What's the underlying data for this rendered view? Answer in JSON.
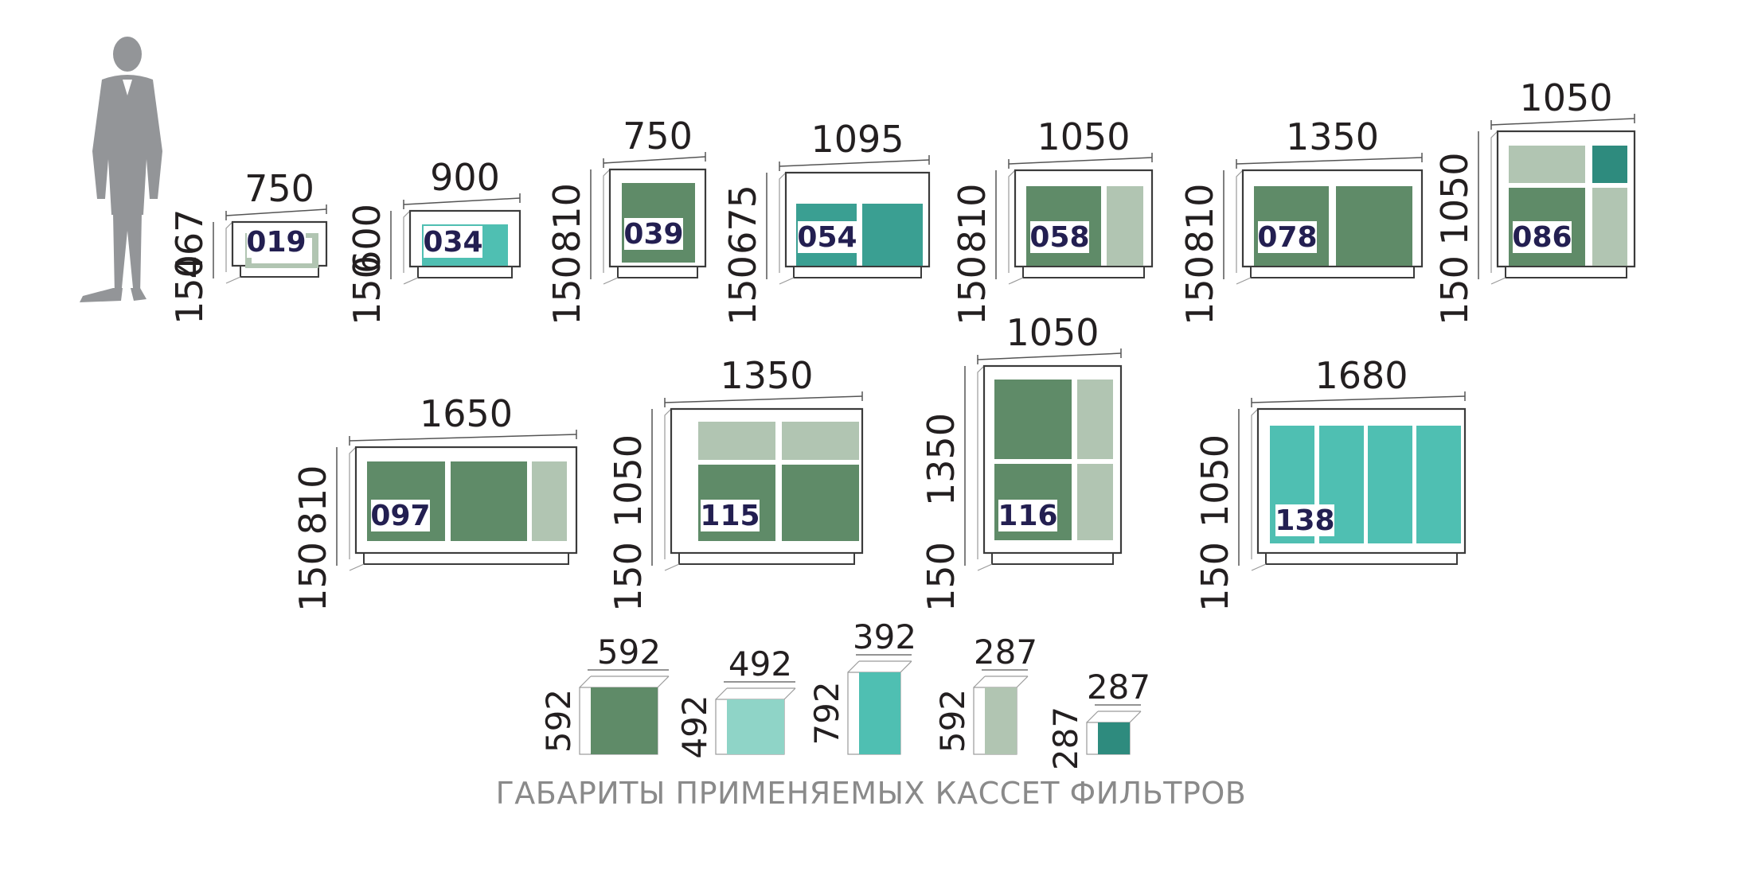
{
  "title": "ГАБАРИТЫ ПРИМЕНЯЕМЫХ КАССЕТ ФИЛЬТРОВ",
  "colors": {
    "dark_green": "#5f8b68",
    "light_sage": "#b1c5b2",
    "teal": "#4fbfb2",
    "mid_teal": "#3a9f92",
    "deep_teal": "#2e8b7e",
    "pale_teal": "#8fd4c7",
    "frame": "#3b3b3b",
    "human": "#939598"
  },
  "units": [
    {
      "code": "019",
      "width": "750",
      "height": "467",
      "base": "150"
    },
    {
      "code": "034",
      "width": "900",
      "height": "600",
      "base": "150"
    },
    {
      "code": "039",
      "width": "750",
      "height": "810",
      "base": "150"
    },
    {
      "code": "054",
      "width": "1095",
      "height": "675",
      "base": "150"
    },
    {
      "code": "058",
      "width": "1050",
      "height": "810",
      "base": "150"
    },
    {
      "code": "078",
      "width": "1350",
      "height": "810",
      "base": "150"
    },
    {
      "code": "086",
      "width": "1050",
      "height": "1050",
      "base": "150"
    },
    {
      "code": "097",
      "width": "1650",
      "height": "810",
      "base": "150"
    },
    {
      "code": "115",
      "width": "1350",
      "height": "1050",
      "base": "150"
    },
    {
      "code": "116",
      "width": "1050",
      "height": "1350",
      "base": "150"
    },
    {
      "code": "138",
      "width": "1680",
      "height": "1050",
      "base": "150"
    }
  ],
  "cassettes": [
    {
      "width": "592",
      "height": "592"
    },
    {
      "width": "492",
      "height": "492"
    },
    {
      "width": "392",
      "height": "792"
    },
    {
      "width": "287",
      "height": "592"
    },
    {
      "width": "287",
      "height": "287"
    }
  ]
}
